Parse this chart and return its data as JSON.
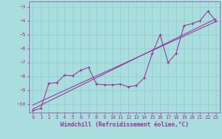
{
  "title": "",
  "xlabel": "Windchill (Refroidissement éolien,°C)",
  "ylabel": "",
  "xlim": [
    -0.5,
    23.5
  ],
  "ylim": [
    -10.6,
    -2.6
  ],
  "yticks": [
    -10,
    -9,
    -8,
    -7,
    -6,
    -5,
    -4,
    -3
  ],
  "xticks": [
    0,
    1,
    2,
    3,
    4,
    5,
    6,
    7,
    8,
    9,
    10,
    11,
    12,
    13,
    14,
    15,
    16,
    17,
    18,
    19,
    20,
    21,
    22,
    23
  ],
  "bg_color": "#aadddd",
  "grid_color": "#88cccc",
  "line_color": "#993399",
  "straight_line1": [
    [
      0,
      -10.35
    ],
    [
      23,
      -3.85
    ]
  ],
  "straight_line2": [
    [
      0,
      -10.05
    ],
    [
      23,
      -4.05
    ]
  ],
  "zigzag_x": [
    0,
    1,
    2,
    3,
    4,
    5,
    6,
    7,
    8,
    9,
    10,
    11,
    12,
    13,
    14,
    15,
    16,
    17,
    18,
    19,
    20,
    21,
    22,
    23
  ],
  "zigzag_y": [
    -10.45,
    -10.3,
    -8.5,
    -8.45,
    -7.9,
    -7.95,
    -7.55,
    -7.35,
    -8.55,
    -8.6,
    -8.6,
    -8.55,
    -8.75,
    -8.65,
    -8.1,
    -6.35,
    -5.0,
    -7.0,
    -6.35,
    -4.35,
    -4.2,
    -4.0,
    -3.3,
    -4.0
  ],
  "tick_fontsize": 5.0,
  "label_fontsize": 6.0
}
